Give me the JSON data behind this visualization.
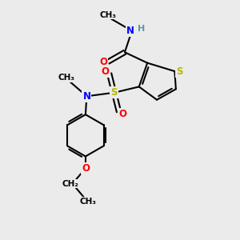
{
  "background_color": "#ebebeb",
  "atom_colors": {
    "C": "#000000",
    "H": "#5a9a9a",
    "N": "#0000ff",
    "O": "#ff0000",
    "S": "#b8b800"
  },
  "figsize": [
    3.0,
    3.0
  ],
  "dpi": 100,
  "xlim": [
    0,
    10
  ],
  "ylim": [
    0,
    10
  ]
}
